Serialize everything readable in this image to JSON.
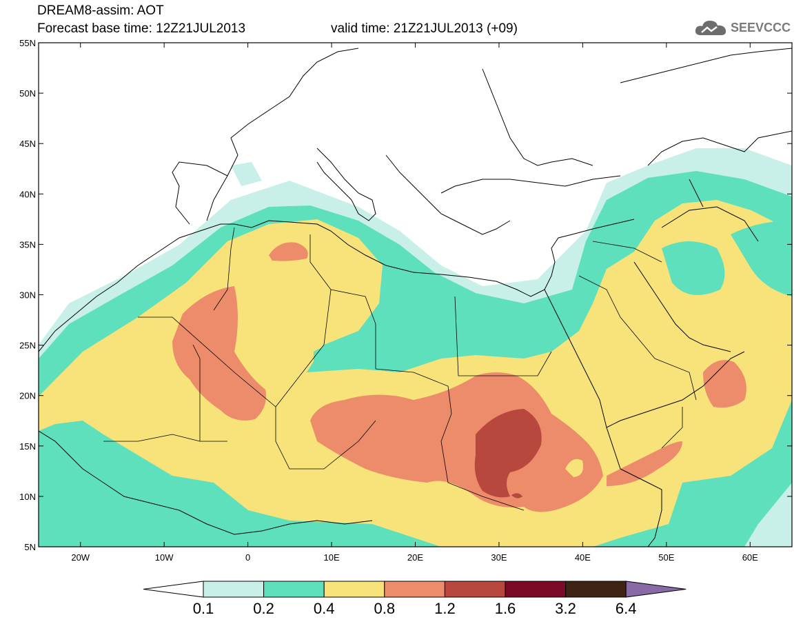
{
  "header": {
    "title_line1": "DREAM8-assim: AOT",
    "title_line2": "Forecast base time: 12Z21JUL2013",
    "valid_time": "valid time: 21Z21JUL2013 (+09)",
    "logo_text": "SEEVCCC"
  },
  "map": {
    "lon_labels": [
      "20W",
      "10W",
      "0",
      "10E",
      "20E",
      "30E",
      "40E",
      "50E",
      "60E"
    ],
    "lat_labels": [
      "55N",
      "50N",
      "45N",
      "40N",
      "35N",
      "30N",
      "25N",
      "20N",
      "15N",
      "10N",
      "5N"
    ],
    "extent": {
      "lon_min": -25,
      "lon_max": 65,
      "lat_min": 5,
      "lat_max": 55
    }
  },
  "colorbar": {
    "labels": [
      "0.1",
      "0.2",
      "0.4",
      "0.8",
      "1.2",
      "1.6",
      "3.2",
      "6.4"
    ],
    "colors": [
      "#ffffff",
      "#c8f0e8",
      "#5ee0bc",
      "#f7e37a",
      "#ec8c6a",
      "#b8473e",
      "#7a0a25",
      "#3f2413",
      "#8a6aa6"
    ]
  },
  "palette": {
    "c01": "#c8f0e8",
    "c02": "#5ee0bc",
    "c04": "#f7e37a",
    "c08": "#ec8c6a",
    "c12": "#b8473e"
  }
}
